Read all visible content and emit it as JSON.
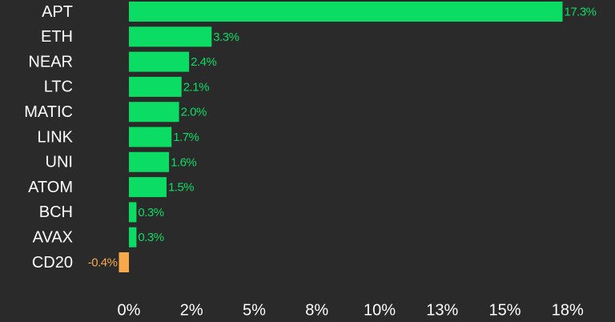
{
  "chart_data": {
    "type": "bar",
    "orientation": "horizontal",
    "categories": [
      "APT",
      "ETH",
      "NEAR",
      "LTC",
      "MATIC",
      "LINK",
      "UNI",
      "ATOM",
      "BCH",
      "AVAX",
      "CD20"
    ],
    "values": [
      17.3,
      3.3,
      2.4,
      2.1,
      2.0,
      1.7,
      1.6,
      1.5,
      0.3,
      0.3,
      -0.4
    ],
    "value_labels": [
      "17.3%",
      "3.3%",
      "2.4%",
      "2.1%",
      "2.0%",
      "1.7%",
      "1.6%",
      "1.5%",
      "0.3%",
      "0.3%",
      "-0.4%"
    ],
    "color": "#0bdc63",
    "negative_color": "#f7a84b",
    "xlim": [
      -0.5,
      19
    ],
    "xticks": [
      {
        "value": 0,
        "label": "0%"
      },
      {
        "value": 2.5,
        "label": "2%"
      },
      {
        "value": 5,
        "label": "5%"
      },
      {
        "value": 7.5,
        "label": "8%"
      },
      {
        "value": 10,
        "label": "10%"
      },
      {
        "value": 12.5,
        "label": "13%"
      },
      {
        "value": 15,
        "label": "15%"
      },
      {
        "value": 17.5,
        "label": "18%"
      }
    ],
    "grid": false
  }
}
